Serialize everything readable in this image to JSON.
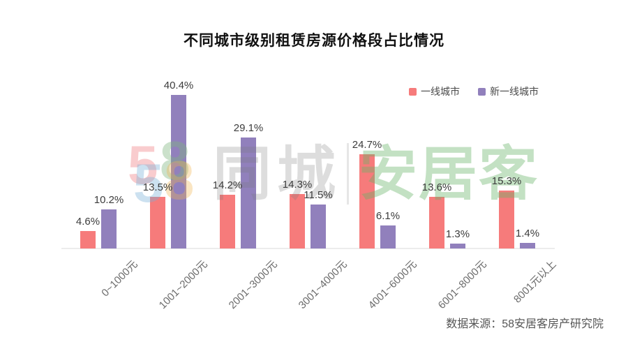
{
  "title": "不同城市级别租赁房源价格段占比情况",
  "source": "数据来源：58安居客房产研究院",
  "watermark": {
    "digit_5": "5",
    "digit_8": "8",
    "text_1": "同城",
    "text_2": "安居客"
  },
  "colors": {
    "series_1": "#f67b7b",
    "series_2": "#9180bc",
    "axis": "#ececec",
    "value_label": "#3c3c3c",
    "category_label": "#6b6b6b"
  },
  "chart_data": {
    "type": "bar",
    "title": "不同城市级别租赁房源价格段占比情况",
    "categories": [
      "0~1000元",
      "1001~2000元",
      "2001~3000元",
      "3001~4000元",
      "4001~6000元",
      "6001~8000元",
      "8001元以上"
    ],
    "series": [
      {
        "name": "一线城市",
        "color": "#f67b7b",
        "values": [
          4.6,
          13.5,
          14.2,
          14.3,
          24.7,
          13.6,
          15.3
        ]
      },
      {
        "name": "新一线城市",
        "color": "#9180bc",
        "values": [
          10.2,
          40.4,
          29.1,
          11.5,
          6.1,
          1.3,
          1.4
        ]
      }
    ],
    "value_suffix": "%",
    "ylim": [
      0,
      44
    ],
    "xlabel": "",
    "ylabel": "",
    "grid": false,
    "legend_position": "top-right",
    "value_labels_shown": true,
    "category_label_rotation_deg": -45
  }
}
